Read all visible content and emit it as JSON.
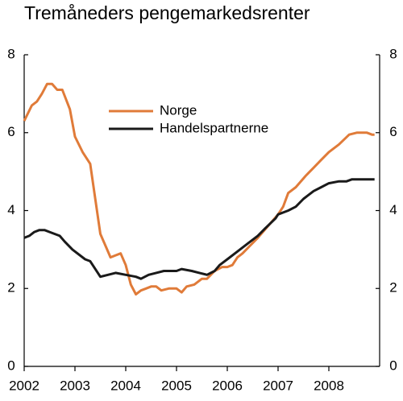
{
  "chart_data": {
    "type": "line",
    "title": "Tremåneders pengemarkedsrenter",
    "xlim": [
      2002,
      2009
    ],
    "xticks": [
      2002,
      2003,
      2004,
      2005,
      2006,
      2007,
      2008
    ],
    "ylim": [
      0,
      8
    ],
    "yticks": [
      0,
      2,
      4,
      6,
      8
    ],
    "y2lim": [
      0,
      8
    ],
    "y2ticks": [
      0,
      2,
      4,
      6,
      8
    ],
    "grid": false,
    "series": [
      {
        "name": "Norge",
        "color": "#e07b39",
        "x": [
          2002.0,
          2002.15,
          2002.25,
          2002.35,
          2002.45,
          2002.55,
          2002.65,
          2002.75,
          2002.9,
          2003.0,
          2003.15,
          2003.3,
          2003.4,
          2003.5,
          2003.6,
          2003.7,
          2003.8,
          2003.9,
          2004.0,
          2004.1,
          2004.2,
          2004.3,
          2004.4,
          2004.5,
          2004.6,
          2004.7,
          2004.85,
          2005.0,
          2005.1,
          2005.2,
          2005.35,
          2005.5,
          2005.6,
          2005.75,
          2005.9,
          2006.0,
          2006.1,
          2006.2,
          2006.3,
          2006.45,
          2006.6,
          2006.8,
          2007.0,
          2007.1,
          2007.2,
          2007.35,
          2007.55,
          2007.7,
          2007.85,
          2008.0,
          2008.2,
          2008.4,
          2008.55,
          2008.75,
          2008.85,
          2008.9
        ],
        "values": [
          6.3,
          6.7,
          6.8,
          7.0,
          7.25,
          7.25,
          7.1,
          7.1,
          6.6,
          5.9,
          5.5,
          5.2,
          4.3,
          3.4,
          3.1,
          2.8,
          2.85,
          2.9,
          2.6,
          2.1,
          1.85,
          1.95,
          2.0,
          2.05,
          2.05,
          1.95,
          2.0,
          2.0,
          1.9,
          2.05,
          2.1,
          2.25,
          2.25,
          2.45,
          2.55,
          2.55,
          2.6,
          2.8,
          2.9,
          3.1,
          3.3,
          3.6,
          3.9,
          4.1,
          4.45,
          4.6,
          4.9,
          5.1,
          5.3,
          5.5,
          5.7,
          5.95,
          6.0,
          6.0,
          5.95,
          5.95
        ]
      },
      {
        "name": "Handelspartnerne",
        "color": "#1a1a1a",
        "x": [
          2002.0,
          2002.1,
          2002.2,
          2002.3,
          2002.4,
          2002.5,
          2002.6,
          2002.7,
          2002.8,
          2002.95,
          2003.2,
          2003.3,
          2003.45,
          2003.5,
          2003.65,
          2003.8,
          2004.0,
          2004.2,
          2004.3,
          2004.45,
          2004.6,
          2004.75,
          2005.0,
          2005.1,
          2005.3,
          2005.45,
          2005.6,
          2005.75,
          2005.85,
          2006.0,
          2006.2,
          2006.4,
          2006.6,
          2006.75,
          2006.95,
          2007.0,
          2007.2,
          2007.35,
          2007.5,
          2007.7,
          2007.85,
          2008.0,
          2008.2,
          2008.35,
          2008.45,
          2008.9
        ],
        "values": [
          3.3,
          3.35,
          3.45,
          3.5,
          3.5,
          3.45,
          3.4,
          3.35,
          3.2,
          3.0,
          2.75,
          2.7,
          2.4,
          2.3,
          2.35,
          2.4,
          2.35,
          2.3,
          2.25,
          2.35,
          2.4,
          2.45,
          2.45,
          2.5,
          2.45,
          2.4,
          2.35,
          2.45,
          2.6,
          2.75,
          2.95,
          3.15,
          3.35,
          3.55,
          3.8,
          3.9,
          4.0,
          4.1,
          4.3,
          4.5,
          4.6,
          4.7,
          4.75,
          4.75,
          4.8,
          4.8
        ]
      }
    ]
  }
}
